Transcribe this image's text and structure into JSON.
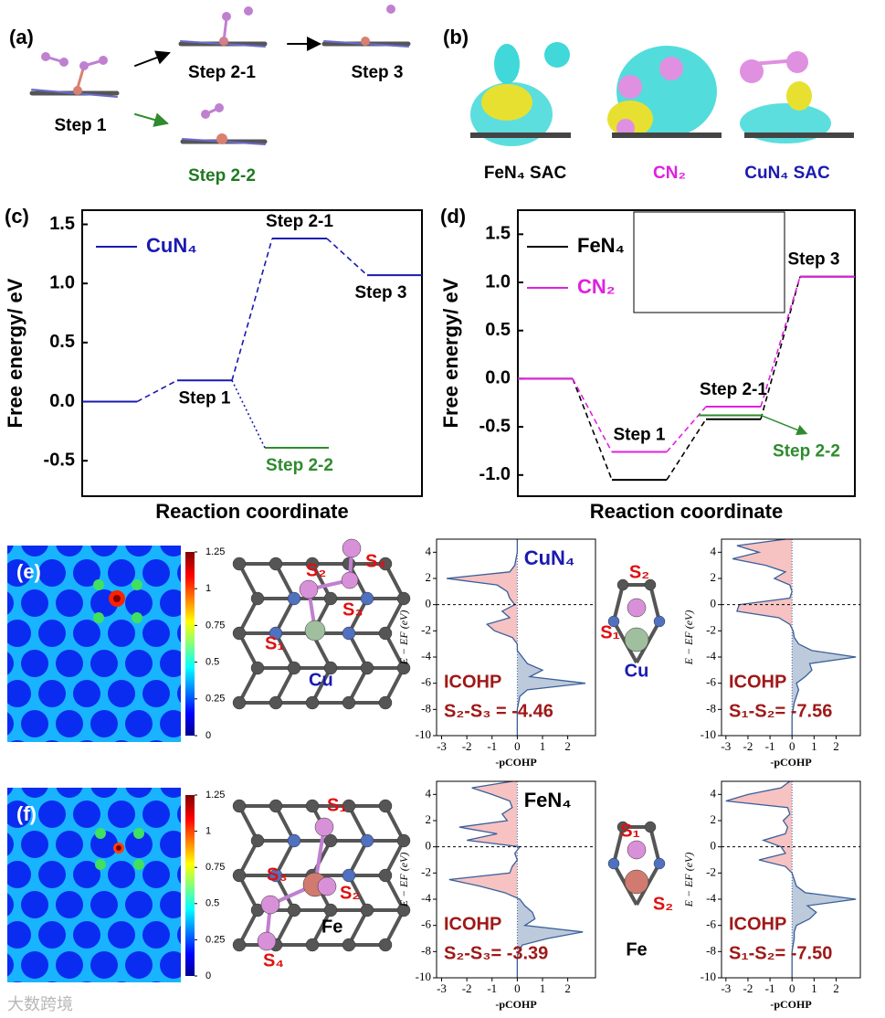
{
  "panels": {
    "a": {
      "label": "(a)",
      "steps": [
        "Step 1",
        "Step 2-1",
        "Step 3",
        "Step 2-2"
      ]
    },
    "b": {
      "label": "(b)",
      "captions": [
        "FeN₄ SAC",
        "CN₂",
        "CuN₄ SAC"
      ]
    },
    "e": {
      "label": "(e)",
      "clim": [
        0,
        1.25
      ],
      "colorbar_ticks": [
        0,
        0.25,
        0.5,
        0.75,
        1,
        1.25
      ],
      "atoms": [
        "S₄",
        "S₂",
        "S₃",
        "S₁",
        "Cu"
      ],
      "fragment_atoms": [
        "S₂",
        "S₁",
        "Cu"
      ]
    },
    "f": {
      "label": "(f)",
      "clim": [
        0,
        1.25
      ],
      "colorbar_ticks": [
        0,
        0.25,
        0.5,
        0.75,
        1,
        1.25
      ],
      "atoms": [
        "S₁",
        "S₃",
        "S₂",
        "Fe",
        "S₄"
      ],
      "fragment_atoms": [
        "S₁",
        "S₂",
        "Fe"
      ]
    }
  },
  "chart_data": [
    {
      "type": "energy-profile",
      "label": "(c)",
      "xlabel": "Reaction coordinate",
      "ylabel": "Free energy/ eV",
      "ylim": [
        -0.8,
        1.62
      ],
      "yticks": [
        -0.5,
        {
          "value": 0,
          "label": "0.0"
        },
        0.5,
        {
          "value": 1,
          "label": "1.0"
        },
        1.5
      ],
      "categories": [
        null,
        "Step 1",
        "Step 2-1",
        "Step 3"
      ],
      "series": [
        {
          "name": "CuN₄",
          "color": "#1a1ab0",
          "values": [
            0,
            0.18,
            1.38,
            1.07
          ]
        }
      ],
      "branch": {
        "label": "Step 2-2",
        "color": "#2e8b2e",
        "values": [
          null,
          null,
          -0.39,
          null
        ]
      }
    },
    {
      "type": "energy-profile",
      "label": "(d)",
      "xlabel": "Reaction coordinate",
      "ylabel": "Free energy/ eV",
      "ylim": [
        -1.22,
        1.75
      ],
      "yticks": [
        {
          "value": -1,
          "label": "-1.0"
        },
        -0.5,
        {
          "value": 0,
          "label": "0.0"
        },
        0.5,
        {
          "value": 1,
          "label": "1.0"
        },
        1.5
      ],
      "categories": [
        null,
        "Step 1",
        "Step 2-1",
        "Step 3"
      ],
      "series": [
        {
          "name": "FeN₄",
          "color": "#000000",
          "values": [
            0,
            -1.05,
            -0.42,
            1.06
          ]
        },
        {
          "name": "CN₂",
          "color": "#e020e0",
          "values": [
            0,
            -0.76,
            -0.29,
            1.06
          ]
        }
      ],
      "branch": {
        "label": "Step 2-2",
        "color": "#2e8b2e",
        "values": [
          null,
          null,
          -0.38,
          null
        ]
      }
    },
    {
      "type": "cohp",
      "title": "CuN₄",
      "title_color": "#1a1ab0",
      "xlabel": "-pCOHP",
      "ylabel": "E − EF (eV)",
      "xlim": [
        -3.2,
        3.1
      ],
      "ylim": [
        -10,
        5
      ],
      "xticks": [
        -3,
        -2,
        -1,
        0,
        1,
        2
      ],
      "yticks": [
        -10,
        -8,
        -6,
        -4,
        -2,
        0,
        2,
        4
      ],
      "y": [
        -10,
        -9.5,
        -9,
        -8.5,
        -8,
        -7.5,
        -7,
        -6.5,
        -6,
        -5.5,
        -5,
        -4.5,
        -4,
        -3.5,
        -3,
        -2.5,
        -2,
        -1.5,
        -1,
        -0.5,
        0,
        0.5,
        1,
        1.5,
        2,
        2.5,
        3,
        3.5,
        4,
        4.5,
        5
      ],
      "values": [
        0,
        0,
        0,
        0,
        0,
        0.05,
        0.1,
        0.4,
        2.7,
        0.5,
        1.0,
        0.4,
        0.2,
        0,
        0,
        -0.2,
        -0.9,
        -1.2,
        -0.3,
        -0.6,
        -0.1,
        -0.3,
        -0.4,
        -0.8,
        -2.8,
        -0.3,
        -0.1,
        -0.05,
        0,
        0,
        0
      ],
      "annotations": [
        "ICOHP",
        "S₂-S₃ = -4.46"
      ]
    },
    {
      "type": "cohp",
      "xlabel": "-pCOHP",
      "ylabel": "E − EF (eV)",
      "xlim": [
        -3.2,
        3.1
      ],
      "ylim": [
        -10,
        5
      ],
      "xticks": [
        -3,
        -2,
        -1,
        0,
        1,
        2
      ],
      "yticks": [
        -10,
        -8,
        -6,
        -4,
        -2,
        0,
        2,
        4
      ],
      "y": [
        -10,
        -9.5,
        -9,
        -8.5,
        -8,
        -7.5,
        -7,
        -6.5,
        -6,
        -5.5,
        -5,
        -4.5,
        -4,
        -3.5,
        -3,
        -2.5,
        -2,
        -1.5,
        -1,
        -0.5,
        0,
        0.5,
        1,
        1.5,
        2,
        2.5,
        3,
        3.5,
        4,
        4.5,
        5
      ],
      "values": [
        0,
        0,
        0,
        0,
        0.05,
        0.1,
        0.2,
        0.3,
        0.2,
        0.6,
        0.9,
        0.8,
        2.9,
        0.9,
        0.3,
        0.1,
        0.05,
        -0.1,
        -0.6,
        -2.5,
        -2.4,
        -0.1,
        0,
        -0.1,
        -0.8,
        -0.3,
        -1.2,
        -2.7,
        -1.5,
        -2.5,
        -0.3
      ],
      "annotations": [
        "ICOHP",
        "S₁-S₂= -7.56"
      ]
    },
    {
      "type": "cohp",
      "title": "FeN₄",
      "title_color": "#000000",
      "xlabel": "-pCOHP",
      "ylabel": "E − EF (eV)",
      "xlim": [
        -3.2,
        3.1
      ],
      "ylim": [
        -10,
        5
      ],
      "xticks": [
        -3,
        -2,
        -1,
        0,
        1,
        2
      ],
      "yticks": [
        -10,
        -8,
        -6,
        -4,
        -2,
        0,
        2,
        4
      ],
      "y": [
        -10,
        -9.5,
        -9,
        -8.5,
        -8,
        -7.5,
        -7,
        -6.5,
        -6,
        -5.5,
        -5,
        -4.5,
        -4,
        -3.5,
        -3,
        -2.5,
        -2,
        -1.5,
        -1,
        -0.5,
        0,
        0.5,
        1,
        1.5,
        2,
        2.5,
        3,
        3.5,
        4,
        4.5,
        5
      ],
      "values": [
        0,
        0,
        0,
        0,
        0.05,
        0.2,
        1.2,
        2.6,
        0.3,
        0.7,
        0.6,
        0.3,
        0.1,
        -0.5,
        -1.5,
        -2.7,
        -0.3,
        -0.2,
        0,
        -0.1,
        0.1,
        -2.0,
        -0.8,
        -2.3,
        -0.4,
        -0.6,
        -0.2,
        -0.3,
        -1.0,
        -1.8,
        -0.2
      ],
      "annotations": [
        "ICOHP",
        "S₂-S₃= -3.39"
      ]
    },
    {
      "type": "cohp",
      "xlabel": "-pCOHP",
      "ylabel": "E − EF (eV)",
      "xlim": [
        -3.2,
        3.1
      ],
      "ylim": [
        -10,
        5
      ],
      "xticks": [
        -3,
        -2,
        -1,
        0,
        1,
        2
      ],
      "yticks": [
        -10,
        -8,
        -6,
        -4,
        -2,
        0,
        2,
        4
      ],
      "y": [
        -10,
        -9.5,
        -9,
        -8.5,
        -8,
        -7.5,
        -7,
        -6.5,
        -6,
        -5.5,
        -5,
        -4.5,
        -4,
        -3.5,
        -3,
        -2.5,
        -2,
        -1.5,
        -1,
        -0.5,
        0,
        0.5,
        1,
        1.5,
        2,
        2.5,
        3,
        3.5,
        4,
        4.5,
        5
      ],
      "values": [
        0,
        0,
        0,
        0,
        0,
        0.05,
        0.1,
        0.1,
        0.2,
        0.8,
        1.1,
        0.7,
        2.9,
        0.6,
        0.2,
        0.1,
        0,
        -0.3,
        -1.5,
        -0.3,
        -0.5,
        -1.3,
        -0.3,
        -0.2,
        -0.4,
        -0.1,
        -0.2,
        -3.0,
        -2.0,
        -0.5,
        -0.1
      ],
      "annotations": [
        "ICOHP",
        "S₁-S₂= -7.50"
      ]
    }
  ],
  "watermark": "大数跨境"
}
